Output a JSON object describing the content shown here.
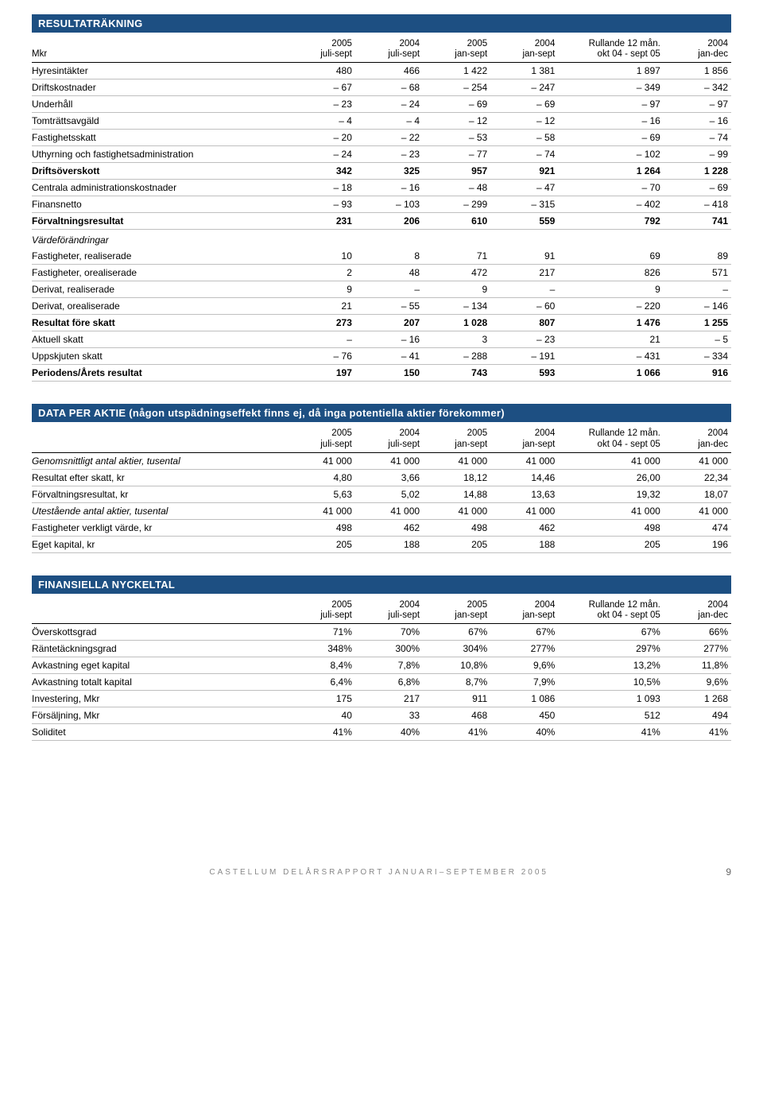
{
  "tables": [
    {
      "title": "RESULTATRÄKNING",
      "sublabel": "Mkr",
      "periods_top": [
        "2005",
        "2004",
        "2005",
        "2004",
        "Rullande 12 mån.",
        "2004"
      ],
      "periods_bot": [
        "juli-sept",
        "juli-sept",
        "jan-sept",
        "jan-sept",
        "okt 04 - sept 05",
        "jan-dec"
      ],
      "rows": [
        {
          "l": "Hyresintäkter",
          "v": [
            "480",
            "466",
            "1 422",
            "1 381",
            "1 897",
            "1 856"
          ]
        },
        {
          "l": "Driftskostnader",
          "v": [
            "– 67",
            "– 68",
            "– 254",
            "– 247",
            "– 349",
            "– 342"
          ]
        },
        {
          "l": "Underhåll",
          "v": [
            "– 23",
            "– 24",
            "– 69",
            "– 69",
            "– 97",
            "– 97"
          ]
        },
        {
          "l": "Tomträttsavgäld",
          "v": [
            "– 4",
            "– 4",
            "– 12",
            "– 12",
            "– 16",
            "– 16"
          ]
        },
        {
          "l": "Fastighetsskatt",
          "v": [
            "– 20",
            "– 22",
            "– 53",
            "– 58",
            "– 69",
            "– 74"
          ]
        },
        {
          "l": "Uthyrning och fastighetsadministration",
          "v": [
            "– 24",
            "– 23",
            "– 77",
            "– 74",
            "– 102",
            "– 99"
          ]
        },
        {
          "l": "Driftsöverskott",
          "v": [
            "342",
            "325",
            "957",
            "921",
            "1 264",
            "1 228"
          ],
          "bold": true
        },
        {
          "l": "Centrala administrationskostnader",
          "v": [
            "– 18",
            "– 16",
            "– 48",
            "– 47",
            "– 70",
            "– 69"
          ]
        },
        {
          "l": "Finansnetto",
          "v": [
            "– 93",
            "– 103",
            "– 299",
            "– 315",
            "– 402",
            "– 418"
          ]
        },
        {
          "l": "Förvaltningsresultat",
          "v": [
            "231",
            "206",
            "610",
            "559",
            "792",
            "741"
          ],
          "bold": true
        },
        {
          "l": "Värdeförändringar",
          "section": true
        },
        {
          "l": "Fastigheter, realiserade",
          "v": [
            "10",
            "8",
            "71",
            "91",
            "69",
            "89"
          ]
        },
        {
          "l": "Fastigheter, orealiserade",
          "v": [
            "2",
            "48",
            "472",
            "217",
            "826",
            "571"
          ]
        },
        {
          "l": "Derivat, realiserade",
          "v": [
            "9",
            "–",
            "9",
            "–",
            "9",
            "–"
          ]
        },
        {
          "l": "Derivat, orealiserade",
          "v": [
            "21",
            "– 55",
            "– 134",
            "– 60",
            "– 220",
            "– 146"
          ]
        },
        {
          "l": "Resultat före skatt",
          "v": [
            "273",
            "207",
            "1 028",
            "807",
            "1 476",
            "1 255"
          ],
          "bold": true
        },
        {
          "l": "Aktuell skatt",
          "v": [
            "–",
            "– 16",
            "3",
            "– 23",
            "21",
            "– 5"
          ]
        },
        {
          "l": "Uppskjuten skatt",
          "v": [
            "– 76",
            "– 41",
            "– 288",
            "– 191",
            "– 431",
            "– 334"
          ]
        },
        {
          "l": "Periodens/Årets resultat",
          "v": [
            "197",
            "150",
            "743",
            "593",
            "1 066",
            "916"
          ],
          "bold": true
        }
      ]
    },
    {
      "title": "DATA PER AKTIE (någon utspädningseffekt finns ej, då inga potentiella aktier förekommer)",
      "sublabel": "",
      "periods_top": [
        "2005",
        "2004",
        "2005",
        "2004",
        "Rullande 12 mån.",
        "2004"
      ],
      "periods_bot": [
        "juli-sept",
        "juli-sept",
        "jan-sept",
        "jan-sept",
        "okt 04 - sept 05",
        "jan-dec"
      ],
      "rows": [
        {
          "l": "Genomsnittligt antal aktier, tusental",
          "v": [
            "41 000",
            "41 000",
            "41 000",
            "41 000",
            "41 000",
            "41 000"
          ],
          "italic": true
        },
        {
          "l": "Resultat efter skatt, kr",
          "v": [
            "4,80",
            "3,66",
            "18,12",
            "14,46",
            "26,00",
            "22,34"
          ]
        },
        {
          "l": "Förvaltningsresultat, kr",
          "v": [
            "5,63",
            "5,02",
            "14,88",
            "13,63",
            "19,32",
            "18,07"
          ]
        },
        {
          "l": "Utestående antal aktier, tusental",
          "v": [
            "41 000",
            "41 000",
            "41 000",
            "41 000",
            "41 000",
            "41 000"
          ],
          "italic": true
        },
        {
          "l": "Fastigheter verkligt värde, kr",
          "v": [
            "498",
            "462",
            "498",
            "462",
            "498",
            "474"
          ]
        },
        {
          "l": "Eget kapital, kr",
          "v": [
            "205",
            "188",
            "205",
            "188",
            "205",
            "196"
          ]
        }
      ]
    },
    {
      "title": "FINANSIELLA NYCKELTAL",
      "sublabel": "",
      "periods_top": [
        "2005",
        "2004",
        "2005",
        "2004",
        "Rullande 12 mån.",
        "2004"
      ],
      "periods_bot": [
        "juli-sept",
        "juli-sept",
        "jan-sept",
        "jan-sept",
        "okt 04 - sept 05",
        "jan-dec"
      ],
      "rows": [
        {
          "l": "Överskottsgrad",
          "v": [
            "71%",
            "70%",
            "67%",
            "67%",
            "67%",
            "66%"
          ]
        },
        {
          "l": "Räntetäckningsgrad",
          "v": [
            "348%",
            "300%",
            "304%",
            "277%",
            "297%",
            "277%"
          ]
        },
        {
          "l": "Avkastning eget kapital",
          "v": [
            "8,4%",
            "7,8%",
            "10,8%",
            "9,6%",
            "13,2%",
            "11,8%"
          ]
        },
        {
          "l": "Avkastning totalt kapital",
          "v": [
            "6,4%",
            "6,8%",
            "8,7%",
            "7,9%",
            "10,5%",
            "9,6%"
          ]
        },
        {
          "l": "Investering, Mkr",
          "v": [
            "175",
            "217",
            "911",
            "1 086",
            "1 093",
            "1 268"
          ]
        },
        {
          "l": "Försäljning, Mkr",
          "v": [
            "40",
            "33",
            "468",
            "450",
            "512",
            "494"
          ]
        },
        {
          "l": "Soliditet",
          "v": [
            "41%",
            "40%",
            "41%",
            "40%",
            "41%",
            "41%"
          ]
        }
      ]
    }
  ],
  "footer": {
    "text": "CASTELLUM DELÅRSRAPPORT JANUARI–SEPTEMBER 2005",
    "page": "9"
  }
}
